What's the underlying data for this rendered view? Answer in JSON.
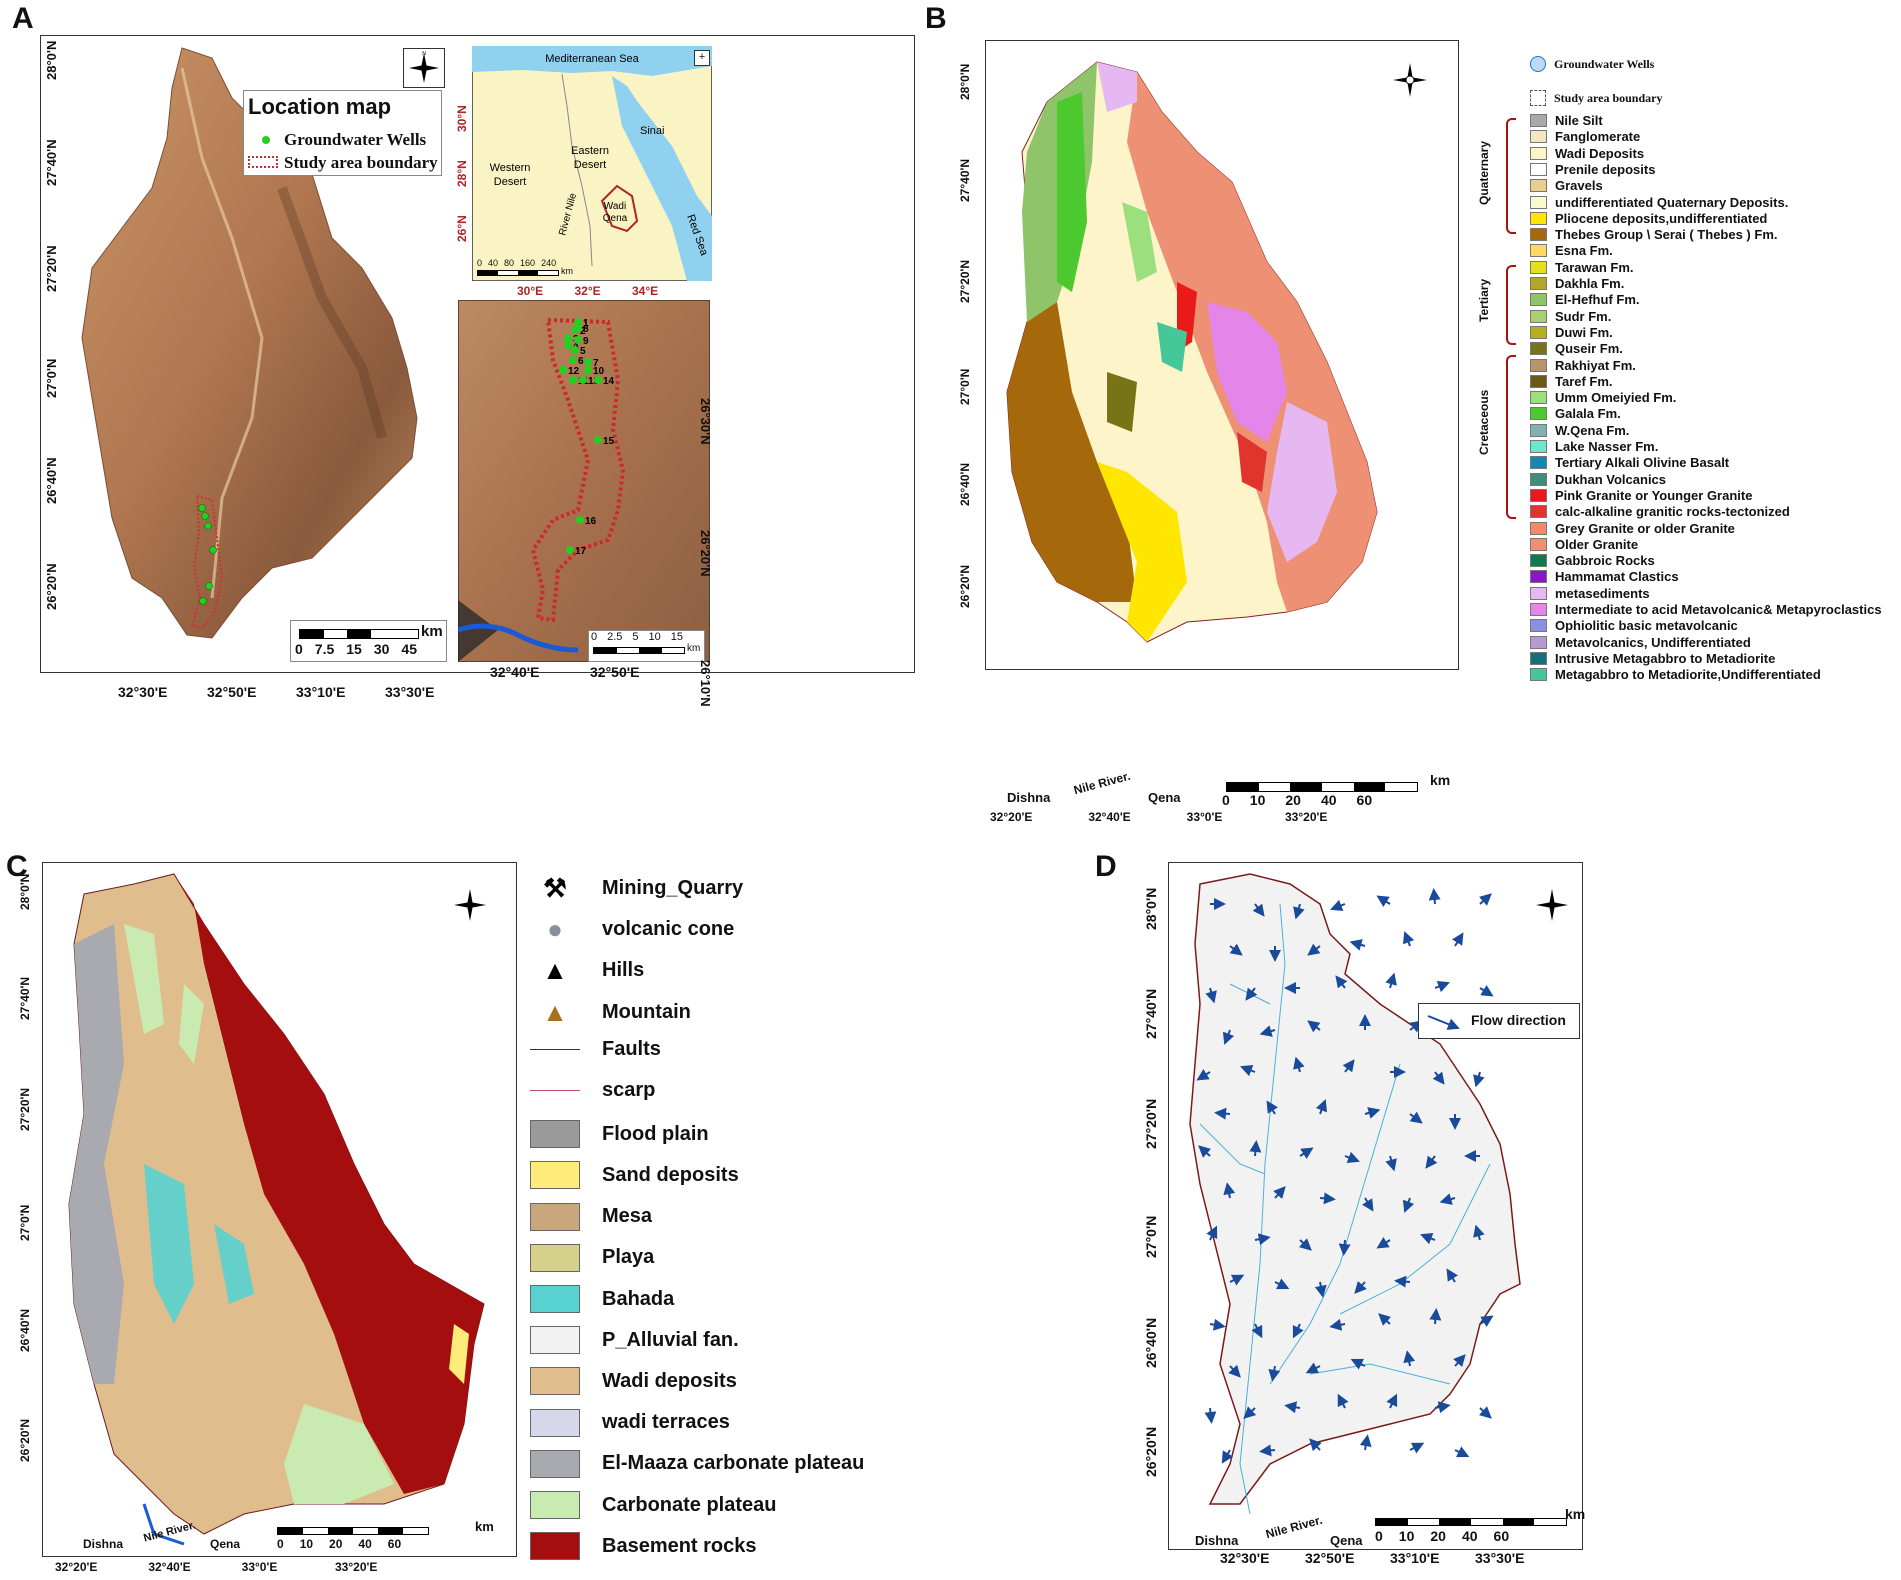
{
  "panels": {
    "a": {
      "letter": "A",
      "location_map": {
        "title": "Location map",
        "wells_label": "Groundwater Wells",
        "boundary_label": "Study area boundary"
      },
      "lat_ticks": [
        "28°0'N",
        "27°40'N",
        "27°20'N",
        "27°0'N",
        "26°40'N",
        "26°20'N"
      ],
      "lon_ticks": [
        "32°30'E",
        "32°50'E",
        "33°10'E",
        "33°30'E"
      ],
      "scale": {
        "unit": "km",
        "ticks": [
          "0",
          "7.5",
          "15",
          "30",
          "45"
        ]
      },
      "inset_egypt": {
        "labels": {
          "med": "Mediterranean Sea",
          "western": "Western\nDesert",
          "eastern": "Eastern\nDesert",
          "sinai": "Sinai",
          "nile": "River Nile",
          "red": "Red Sea",
          "wadi": "Wadi\nQena"
        },
        "lat_ticks": [
          "30°N",
          "28°N",
          "26°N"
        ],
        "lon_ticks": [
          "30°E",
          "32°E",
          "34°E"
        ],
        "scale": {
          "unit": "km",
          "ticks": [
            "0",
            "40",
            "80",
            "160",
            "240"
          ]
        }
      },
      "inset_wells": {
        "well_ids": [
          "1",
          "2",
          "3",
          "4",
          "5",
          "6",
          "7",
          "8",
          "9",
          "10",
          "11",
          "12",
          "13",
          "14",
          "15",
          "16",
          "17"
        ],
        "lat_ticks": [
          "26°30'N",
          "26°20'N",
          "26°10'N"
        ],
        "lon_ticks": [
          "32°40'E",
          "32°50'E"
        ],
        "scale": {
          "unit": "km",
          "ticks": [
            "0",
            "2.5",
            "5",
            "10",
            "15"
          ]
        }
      }
    },
    "b": {
      "letter": "B",
      "lat_ticks": [
        "28°0'N",
        "27°40'N",
        "27°20'N",
        "27°0'N",
        "26°40'N",
        "26°20'N"
      ],
      "lon_ticks": [
        "32°20'E",
        "32°40'E",
        "33°0'E",
        "33°20'E"
      ],
      "places": {
        "dishna": "Dishna",
        "nile": "Nile River.",
        "qena": "Qena"
      },
      "scale": {
        "unit": "km",
        "ticks": [
          "0",
          "10",
          "20",
          "40",
          "60"
        ]
      },
      "groups": {
        "quaternary": "Quaternary",
        "tertiary": "Tertiary",
        "cretaceous": "Cretaceous"
      },
      "legend_top": [
        "Groundwater Wells",
        "Study area boundary"
      ],
      "legend": [
        {
          "label": "Nile Silt",
          "color": "#a9a9a9"
        },
        {
          "label": "Fanglomerate",
          "color": "#f4e6c0"
        },
        {
          "label": "Wadi Deposits",
          "color": "#fdf5c9"
        },
        {
          "label": "Prenile deposits",
          "color": "#ffffff"
        },
        {
          "label": "Gravels",
          "color": "#e8cf8e"
        },
        {
          "label": "undifferentiated Quaternary Deposits.",
          "color": "#fafad0"
        },
        {
          "label": "Pliocene deposits,undifferentiated",
          "color": "#ffe600"
        },
        {
          "label": "Thebes Group \\ Serai ( Thebes ) Fm.",
          "color": "#a5690b"
        },
        {
          "label": "Esna Fm.",
          "color": "#ffd866"
        },
        {
          "label": "Tarawan Fm.",
          "color": "#e6e01a"
        },
        {
          "label": "Dakhla Fm.",
          "color": "#b1a82b"
        },
        {
          "label": "El-Hefhuf Fm.",
          "color": "#8fc46a"
        },
        {
          "label": "Sudr Fm.",
          "color": "#a9cf6e"
        },
        {
          "label": "Duwi Fm.",
          "color": "#b5b01e"
        },
        {
          "label": "Quseir Fm.",
          "color": "#777316"
        },
        {
          "label": "Rakhiyat Fm.",
          "color": "#b8946c"
        },
        {
          "label": "Taref Fm.",
          "color": "#6d5a18"
        },
        {
          "label": "Umm Omeiyied Fm.",
          "color": "#9be07c"
        },
        {
          "label": "Galala Fm.",
          "color": "#4bc92f"
        },
        {
          "label": "W.Qena Fm.",
          "color": "#7fb2b0"
        },
        {
          "label": "Lake Nasser Fm.",
          "color": "#6ee6c8"
        },
        {
          "label": "Tertiary Alkali Olivine Basalt",
          "color": "#1687b0"
        },
        {
          "label": "Dukhan Volcanics",
          "color": "#3d8f7a"
        },
        {
          "label": "Pink Granite or Younger Granite",
          "color": "#e81a1a"
        },
        {
          "label": "calc-alkaline granitic rocks-tectonized",
          "color": "#e0342c"
        },
        {
          "label": "Grey Granite or older Granite",
          "color": "#f08a6a"
        },
        {
          "label": "Older Granite",
          "color": "#ee9074"
        },
        {
          "label": "Gabbroic Rocks",
          "color": "#127a52"
        },
        {
          "label": "Hammamat Clastics",
          "color": "#8a16c9"
        },
        {
          "label": "metasediments",
          "color": "#e6b8f2"
        },
        {
          "label": "Intermediate to acid Metavolcanic& Metapyroclastics",
          "color": "#e485ea"
        },
        {
          "label": "Ophiolitic basic metavolcanic",
          "color": "#8d8fe0"
        },
        {
          "label": "Metavolcanics, Undifferentiated",
          "color": "#b79ad4"
        },
        {
          "label": "Intrusive Metagabbro to Metadiorite",
          "color": "#16707a"
        },
        {
          "label": "Metagabbro to Metadiorite,Undifferentiated",
          "color": "#45c79a"
        }
      ]
    },
    "c": {
      "letter": "C",
      "lat_ticks": [
        "28°0'N",
        "27°40'N",
        "27°20'N",
        "27°0'N",
        "26°40'N",
        "26°20'N"
      ],
      "lon_ticks": [
        "32°20'E",
        "32°40'E",
        "33°0'E",
        "33°20'E"
      ],
      "places": {
        "dishna": "Dishna",
        "nile": "Nile River.",
        "qena": "Qena"
      },
      "scale": {
        "unit": "km",
        "ticks": [
          "0",
          "10",
          "20",
          "40",
          "60"
        ]
      },
      "legend": [
        {
          "label": "Mining_Quarry",
          "color": "",
          "icon": "pickaxe-icon"
        },
        {
          "label": "volcanic cone",
          "color": "#8a8fa0",
          "icon": "volcanic-cone-icon"
        },
        {
          "label": "Hills",
          "color": "",
          "icon": "hills-icon"
        },
        {
          "label": "Mountain",
          "color": "#a5711a",
          "icon": "mountain-icon"
        },
        {
          "label": "Faults",
          "color": "#333333",
          "icon": "line"
        },
        {
          "label": "scarp",
          "color": "#c04a6a",
          "icon": "line"
        },
        {
          "label": "Flood plain",
          "color": "#9a9a9a",
          "icon": "swatch"
        },
        {
          "label": "Sand deposits",
          "color": "#fdeb7a",
          "icon": "swatch"
        },
        {
          "label": "Mesa",
          "color": "#c7a77b",
          "icon": "swatch"
        },
        {
          "label": "Playa",
          "color": "#d5d08a",
          "icon": "swatch"
        },
        {
          "label": "Bahada",
          "color": "#58d2d0",
          "icon": "swatch"
        },
        {
          "label": "P_Alluvial fan.",
          "color": "#f2f2f2",
          "icon": "swatch"
        },
        {
          "label": "Wadi deposits",
          "color": "#e0bd8c",
          "icon": "swatch"
        },
        {
          "label": "wadi terraces",
          "color": "#d4d8ea",
          "icon": "swatch"
        },
        {
          "label": "El-Maaza carbonate plateau",
          "color": "#a9a9b0",
          "icon": "swatch"
        },
        {
          "label": "Carbonate plateau",
          "color": "#c9eab0",
          "icon": "swatch"
        },
        {
          "label": "Basement rocks",
          "color": "#a40e0e",
          "icon": "swatch"
        }
      ]
    },
    "d": {
      "letter": "D",
      "lat_ticks": [
        "28°0'N",
        "27°40'N",
        "27°20'N",
        "27°0'N",
        "26°40'N",
        "26°20'N"
      ],
      "lon_ticks": [
        "32°30'E",
        "32°50'E",
        "33°10'E",
        "33°30'E"
      ],
      "places": {
        "dishna": "Dishna",
        "nile": "Nile River.",
        "qena": "Qena"
      },
      "scale": {
        "unit": "km",
        "ticks": [
          "0",
          "10",
          "20",
          "40",
          "60"
        ]
      },
      "legend_label": "Flow direction"
    }
  },
  "compass": {
    "n": "N",
    "s": "S",
    "e": "E",
    "w": "W"
  }
}
